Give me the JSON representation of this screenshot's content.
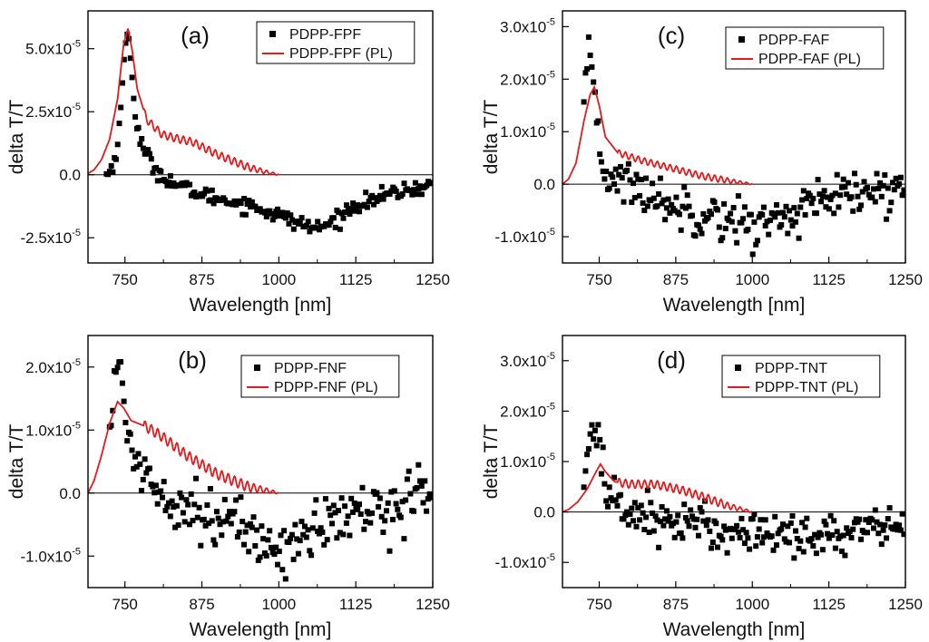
{
  "chart_data": [
    {
      "type": "scatter",
      "panel": "(a)",
      "xlabel": "Wavelength [nm]",
      "ylabel": "delta T/T",
      "xlim": [
        690,
        1250
      ],
      "ylim": [
        -3.5e-05,
        6.5e-05
      ],
      "xticks": [
        750,
        875,
        1000,
        1125,
        1250
      ],
      "yticks": [
        {
          "value": -2.5e-05,
          "mant": "-2.5x10",
          "exp": "-5"
        },
        {
          "value": 0,
          "mant": "0.0",
          "exp": ""
        },
        {
          "value": 2.5e-05,
          "mant": "2.5x10",
          "exp": "-5"
        },
        {
          "value": 5e-05,
          "mant": "5.0x10",
          "exp": "-5"
        }
      ],
      "legend": [
        "PDPP-FPF",
        "PDPP-FPF (PL)"
      ],
      "legend_position": "top-right",
      "colors": {
        "transient": "#000000",
        "pl": "#e31a1c"
      },
      "transient_profile": [
        [
          720,
          0.0
        ],
        [
          730,
          3e-06
        ],
        [
          738,
          1.2e-05
        ],
        [
          745,
          3e-05
        ],
        [
          750,
          5.2e-05
        ],
        [
          755,
          5.6e-05
        ],
        [
          760,
          4.6e-05
        ],
        [
          765,
          2.8e-05
        ],
        [
          770,
          1.8e-05
        ],
        [
          780,
          1e-05
        ],
        [
          800,
          2e-06
        ],
        [
          825,
          -3e-06
        ],
        [
          875,
          -8e-06
        ],
        [
          950,
          -1.2e-05
        ],
        [
          1000,
          -1.6e-05
        ],
        [
          1030,
          -1.9e-05
        ],
        [
          1055,
          -2.1e-05
        ],
        [
          1070,
          -2.1e-05
        ],
        [
          1090,
          -1.8e-05
        ],
        [
          1125,
          -1.2e-05
        ],
        [
          1175,
          -8e-06
        ],
        [
          1250,
          -4e-06
        ]
      ],
      "transient_noise": 1.5e-06,
      "pl_curve": [
        [
          690,
          5e-07
        ],
        [
          700,
          2e-06
        ],
        [
          712,
          6e-06
        ],
        [
          725,
          1.4e-05
        ],
        [
          738,
          3e-05
        ],
        [
          748,
          5.2e-05
        ],
        [
          755,
          5.8e-05
        ],
        [
          762,
          4.9e-05
        ],
        [
          770,
          3.4e-05
        ],
        [
          785,
          2.2e-05
        ],
        [
          810,
          1.6e-05
        ],
        [
          840,
          1.4e-05
        ],
        [
          860,
          1.3e-05
        ],
        [
          900,
          8e-06
        ],
        [
          950,
          3e-06
        ],
        [
          980,
          1e-06
        ],
        [
          1000,
          0.0
        ]
      ],
      "pl_ripple": 1.5e-06
    },
    {
      "type": "scatter",
      "panel": "(c)",
      "xlabel": "Wavelength [nm]",
      "ylabel": "delta T/T",
      "xlim": [
        690,
        1250
      ],
      "ylim": [
        -1.5e-05,
        3.3e-05
      ],
      "xticks": [
        750,
        875,
        1000,
        1125,
        1250
      ],
      "yticks": [
        {
          "value": -1e-05,
          "mant": "-1.0x10",
          "exp": "-5"
        },
        {
          "value": 0,
          "mant": "0.0",
          "exp": ""
        },
        {
          "value": 1e-05,
          "mant": "1.0x10",
          "exp": "-5"
        },
        {
          "value": 2e-05,
          "mant": "2.0x10",
          "exp": "-5"
        },
        {
          "value": 3e-05,
          "mant": "3.0x10",
          "exp": "-5"
        }
      ],
      "legend": [
        "PDPP-FAF",
        "PDPP-FAF (PL)"
      ],
      "legend_position": "top-right",
      "colors": {
        "transient": "#000000",
        "pl": "#e31a1c"
      },
      "transient_profile": [
        [
          725,
          1.4e-05
        ],
        [
          732,
          2.3e-05
        ],
        [
          738,
          2.2e-05
        ],
        [
          745,
          1.5e-05
        ],
        [
          752,
          6e-06
        ],
        [
          760,
          2e-06
        ],
        [
          780,
          1e-06
        ],
        [
          800,
          0.0
        ],
        [
          850,
          -3e-06
        ],
        [
          900,
          -5e-06
        ],
        [
          950,
          -6e-06
        ],
        [
          1000,
          -8e-06
        ],
        [
          1030,
          -7e-06
        ],
        [
          1075,
          -5e-06
        ],
        [
          1125,
          -3e-06
        ],
        [
          1175,
          -2e-06
        ],
        [
          1250,
          -1e-06
        ]
      ],
      "transient_noise": 2.2e-06,
      "pl_curve": [
        [
          690,
          0.0
        ],
        [
          700,
          1e-06
        ],
        [
          712,
          4e-06
        ],
        [
          725,
          1.2e-05
        ],
        [
          735,
          1.7e-05
        ],
        [
          742,
          1.85e-05
        ],
        [
          750,
          1.5e-05
        ],
        [
          760,
          9e-06
        ],
        [
          780,
          6e-06
        ],
        [
          820,
          4.5e-06
        ],
        [
          870,
          3e-06
        ],
        [
          920,
          1.5e-06
        ],
        [
          970,
          5e-07
        ],
        [
          1000,
          0.0
        ]
      ],
      "pl_ripple": 6e-07
    },
    {
      "type": "scatter",
      "panel": "(b)",
      "xlabel": "Wavelength [nm]",
      "ylabel": "delta T/T",
      "xlim": [
        690,
        1250
      ],
      "ylim": [
        -1.5e-05,
        2.5e-05
      ],
      "xticks": [
        750,
        875,
        1000,
        1125,
        1250
      ],
      "yticks": [
        {
          "value": -1e-05,
          "mant": "-1.0x10",
          "exp": "-5"
        },
        {
          "value": 0,
          "mant": "0.0",
          "exp": ""
        },
        {
          "value": 1e-05,
          "mant": "1.0x10",
          "exp": "-5"
        },
        {
          "value": 2e-05,
          "mant": "2.0x10",
          "exp": "-5"
        }
      ],
      "legend": [
        "PDPP-FNF",
        "PDPP-FNF (PL)"
      ],
      "legend_position": "top-right",
      "colors": {
        "transient": "#000000",
        "pl": "#e31a1c"
      },
      "transient_profile": [
        [
          725,
          1e-05
        ],
        [
          732,
          1.8e-05
        ],
        [
          738,
          2.1e-05
        ],
        [
          745,
          1.5e-05
        ],
        [
          755,
          9e-06
        ],
        [
          770,
          5e-06
        ],
        [
          800,
          1e-06
        ],
        [
          850,
          -2e-06
        ],
        [
          900,
          -4e-06
        ],
        [
          950,
          -6e-06
        ],
        [
          980,
          -8e-06
        ],
        [
          1000,
          -9e-06
        ],
        [
          1020,
          -8e-06
        ],
        [
          1050,
          -6e-06
        ],
        [
          1100,
          -4e-06
        ],
        [
          1150,
          -3e-06
        ],
        [
          1200,
          -1.5e-06
        ],
        [
          1250,
          1e-06
        ]
      ],
      "transient_noise": 2.2e-06,
      "pl_curve": [
        [
          690,
          0.0
        ],
        [
          700,
          2e-06
        ],
        [
          712,
          6e-06
        ],
        [
          725,
          1.1e-05
        ],
        [
          738,
          1.45e-05
        ],
        [
          748,
          1.35e-05
        ],
        [
          760,
          1.15e-05
        ],
        [
          785,
          1.05e-05
        ],
        [
          810,
          9e-06
        ],
        [
          850,
          6e-06
        ],
        [
          900,
          3e-06
        ],
        [
          950,
          1e-06
        ],
        [
          1000,
          0.0
        ]
      ],
      "pl_ripple": 8e-07
    },
    {
      "type": "scatter",
      "panel": "(d)",
      "xlabel": "Wavelength [nm]",
      "ylabel": "delta T/T",
      "xlim": [
        690,
        1250
      ],
      "ylim": [
        -1.5e-05,
        3.5e-05
      ],
      "xticks": [
        750,
        875,
        1000,
        1125,
        1250
      ],
      "yticks": [
        {
          "value": -1e-05,
          "mant": "-1.0x10",
          "exp": "-5"
        },
        {
          "value": 0,
          "mant": "0.0",
          "exp": ""
        },
        {
          "value": 1e-05,
          "mant": "1.0x10",
          "exp": "-5"
        },
        {
          "value": 2e-05,
          "mant": "2.0x10",
          "exp": "-5"
        },
        {
          "value": 3e-05,
          "mant": "3.0x10",
          "exp": "-5"
        }
      ],
      "legend": [
        "PDPP-TNT",
        "PDPP-TNT (PL)"
      ],
      "legend_position": "top-right",
      "colors": {
        "transient": "#000000",
        "pl": "#e31a1c"
      },
      "transient_profile": [
        [
          725,
          6e-06
        ],
        [
          735,
          1.4e-05
        ],
        [
          742,
          1.8e-05
        ],
        [
          748,
          1.6e-05
        ],
        [
          755,
          8e-06
        ],
        [
          765,
          3e-06
        ],
        [
          800,
          0.0
        ],
        [
          850,
          -1.5e-06
        ],
        [
          900,
          -2.5e-06
        ],
        [
          950,
          -3.5e-06
        ],
        [
          1000,
          -4e-06
        ],
        [
          1100,
          -4.5e-06
        ],
        [
          1150,
          -4.5e-06
        ],
        [
          1200,
          -3.5e-06
        ],
        [
          1250,
          -2e-06
        ]
      ],
      "transient_noise": 2.2e-06,
      "pl_curve": [
        [
          690,
          0.0
        ],
        [
          700,
          5e-07
        ],
        [
          715,
          2e-06
        ],
        [
          730,
          4.5e-06
        ],
        [
          745,
          8e-06
        ],
        [
          752,
          9.5e-06
        ],
        [
          760,
          8e-06
        ],
        [
          775,
          6e-06
        ],
        [
          800,
          5.5e-06
        ],
        [
          840,
          5.5e-06
        ],
        [
          880,
          4.5e-06
        ],
        [
          920,
          3e-06
        ],
        [
          960,
          1.2e-06
        ],
        [
          1000,
          0.0
        ]
      ],
      "pl_ripple": 8e-07
    }
  ]
}
